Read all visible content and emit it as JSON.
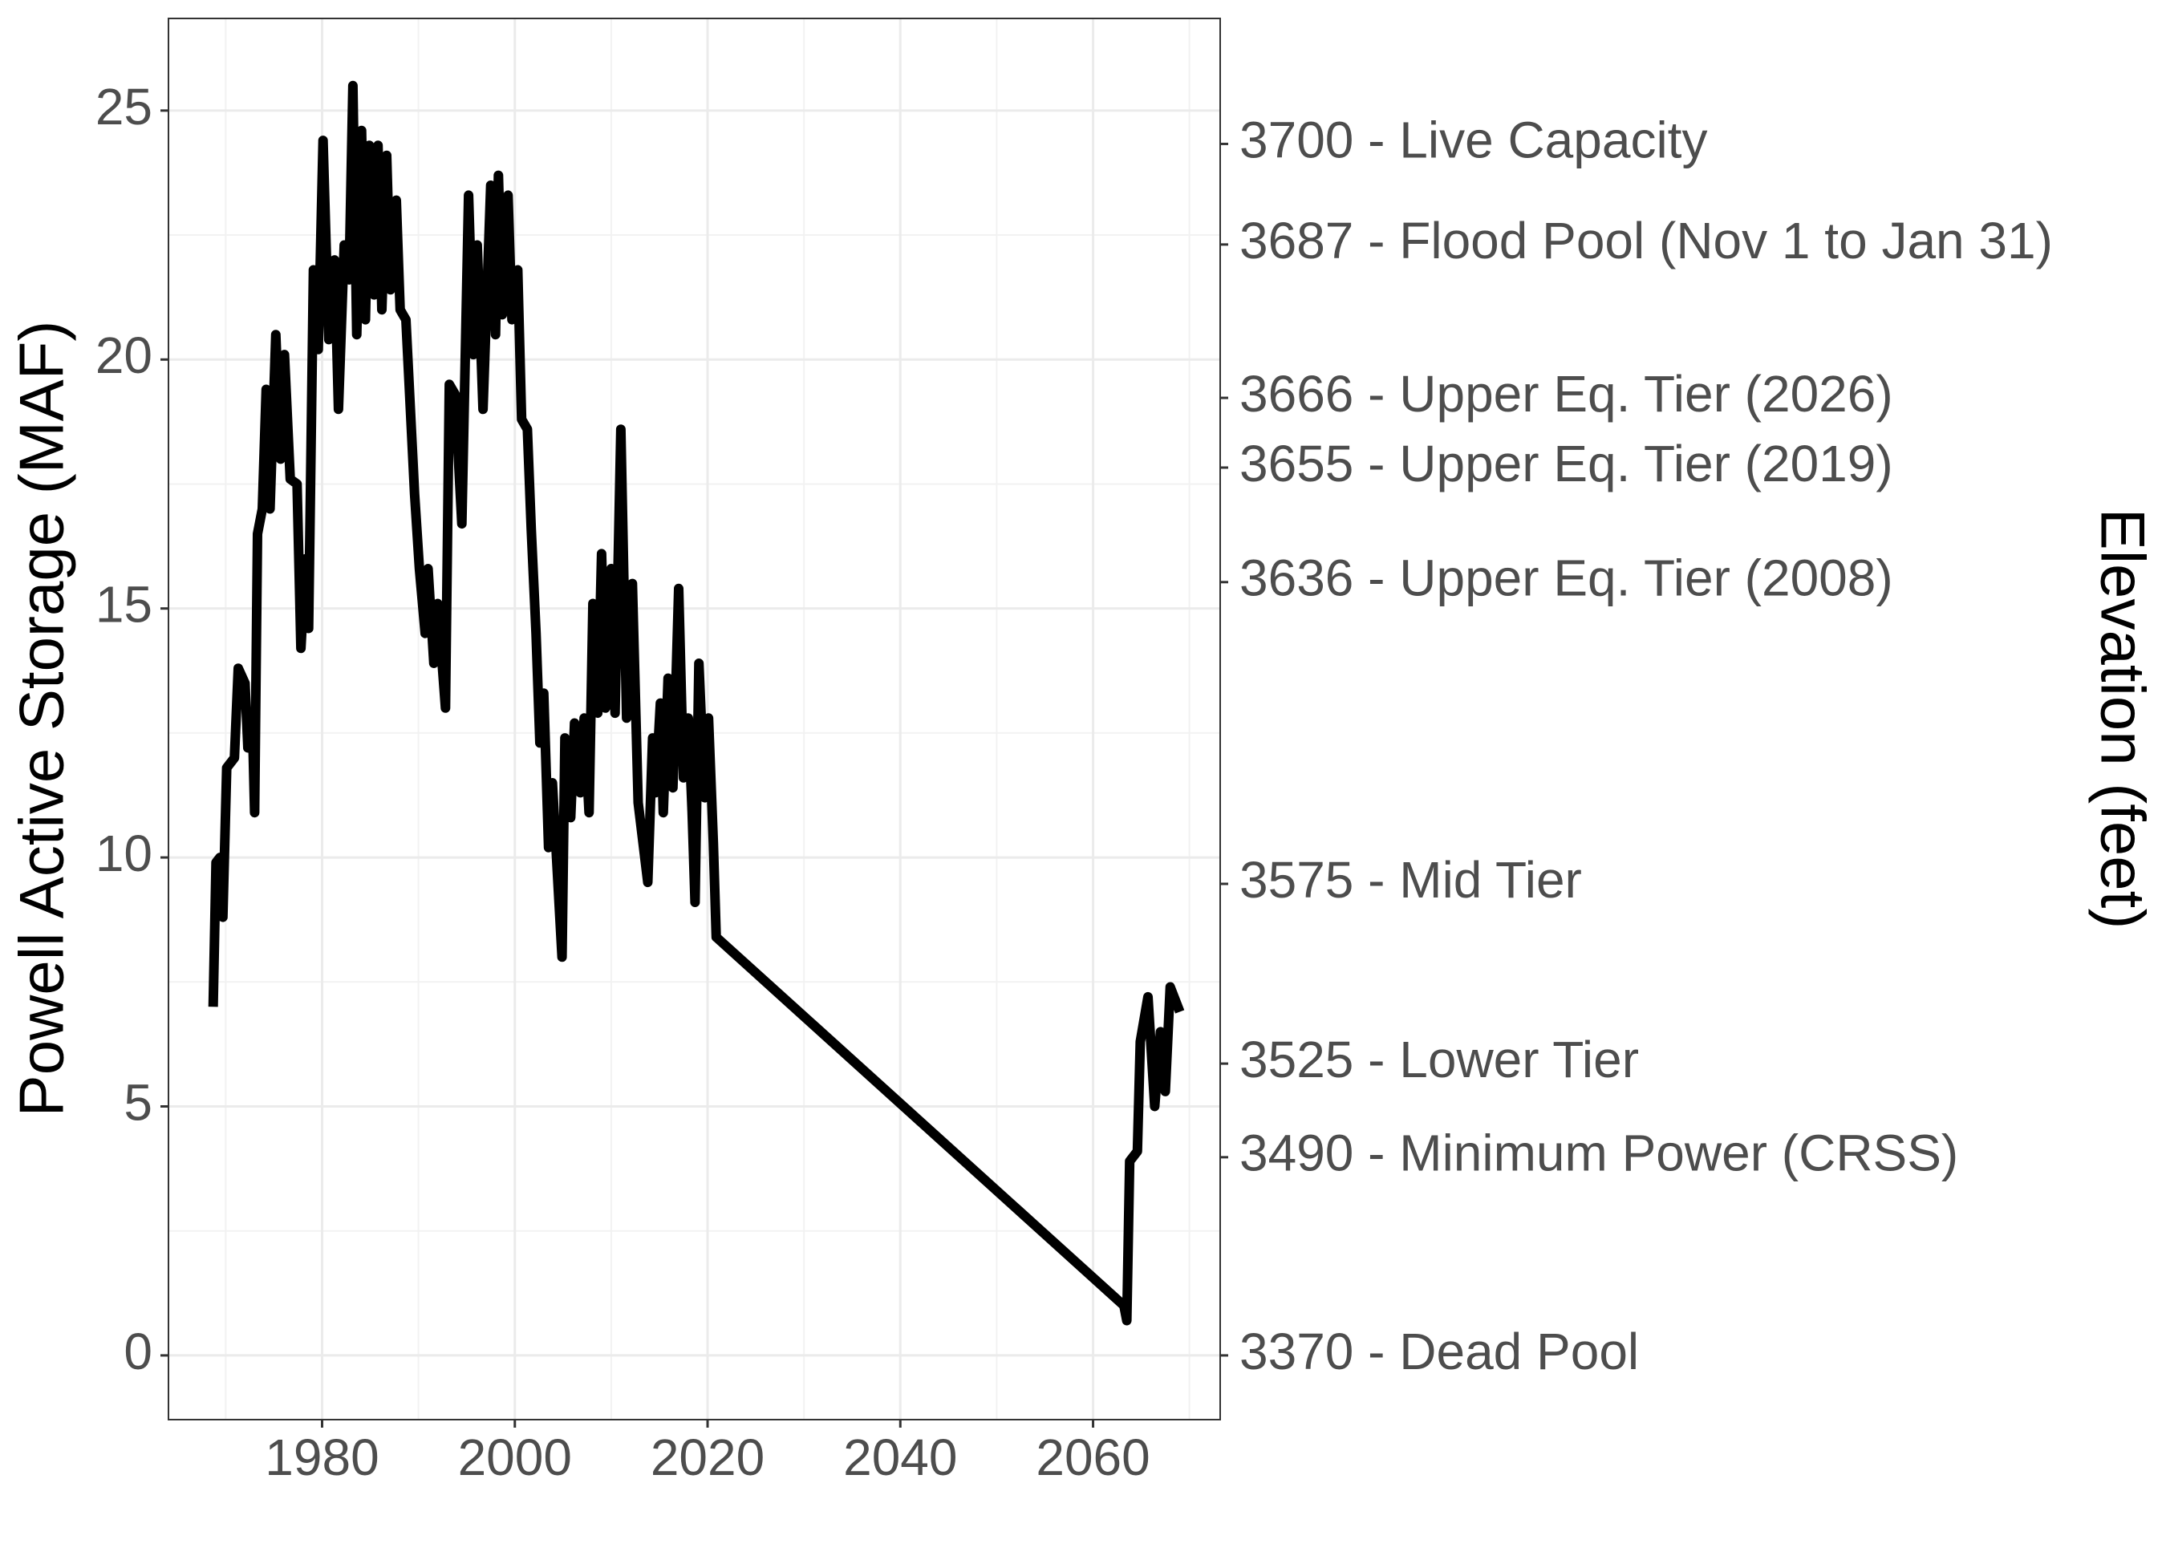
{
  "chart_data": {
    "type": "line",
    "y_label": "Powell Active Storage (MAF)",
    "y2_label": "Elevation (feet)",
    "color": "#000000",
    "grid": true,
    "x": [
      1968.7,
      1969.0,
      1969.4,
      1969.7,
      1970.1,
      1970.9,
      1971.3,
      1972.0,
      1972.3,
      1972.8,
      1973.0,
      1973.3,
      1973.8,
      1974.2,
      1974.6,
      1975.2,
      1975.7,
      1976.1,
      1976.7,
      1977.4,
      1977.8,
      1978.3,
      1978.6,
      1979.1,
      1979.6,
      1980.1,
      1980.7,
      1981.3,
      1981.7,
      1982.3,
      1982.8,
      1983.2,
      1983.6,
      1984.1,
      1984.5,
      1984.9,
      1985.4,
      1985.8,
      1986.2,
      1986.7,
      1987.1,
      1987.7,
      1988.1,
      1988.7,
      1989.6,
      1990.1,
      1990.7,
      1991.0,
      1991.6,
      1992.0,
      1992.8,
      1993.2,
      1993.8,
      1994.5,
      1995.2,
      1995.7,
      1996.1,
      1996.7,
      1997.5,
      1998.0,
      1998.3,
      1998.7,
      1999.3,
      1999.7,
      2000.3,
      2000.7,
      2001.3,
      2001.7,
      2002.2,
      2002.6,
      2003.0,
      2003.5,
      2003.9,
      2004.9,
      2005.2,
      2005.8,
      2006.2,
      2006.8,
      2007.2,
      2007.7,
      2008.1,
      2008.6,
      2009.0,
      2009.4,
      2010.0,
      2010.4,
      2011.0,
      2011.6,
      2012.2,
      2012.8,
      2013.8,
      2014.3,
      2014.6,
      2015.1,
      2015.4,
      2015.9,
      2016.4,
      2017.0,
      2017.5,
      2018.0,
      2018.4,
      2018.7,
      2019.1,
      2019.7,
      2020.1,
      2020.6,
      2020.9,
      2063.2,
      2063.5,
      2063.8,
      2064.6,
      2064.9,
      2065.7,
      2066.4,
      2067.0,
      2067.5,
      2068.0,
      2069.0
    ],
    "values": [
      7.0,
      9.9,
      10,
      8.8,
      11.8,
      12,
      13.8,
      13.5,
      12.2,
      12.5,
      10.9,
      16.5,
      17,
      19.4,
      17,
      20.5,
      18,
      20.1,
      17.6,
      17.5,
      14.2,
      16,
      14.6,
      21.8,
      20.2,
      24.4,
      20.4,
      22,
      19,
      22.3,
      21.6,
      25.5,
      20.5,
      24.6,
      20.8,
      24.3,
      21.3,
      24.3,
      21,
      24.1,
      21.4,
      23.2,
      21,
      20.8,
      17.3,
      15.8,
      14.5,
      15.8,
      13.9,
      15.1,
      13,
      19.5,
      19.3,
      16.7,
      23.3,
      20.1,
      22.3,
      19,
      23.5,
      20.5,
      23.7,
      20.9,
      23.3,
      20.8,
      21.8,
      18.8,
      18.6,
      16.6,
      14.5,
      12.3,
      13.3,
      10.2,
      11.5,
      8.0,
      12.4,
      10.8,
      12.7,
      11.3,
      12.8,
      10.9,
      15.1,
      12.9,
      16.1,
      13,
      15.8,
      12.9,
      18.6,
      12.8,
      15.5,
      11.1,
      9.5,
      12.4,
      11.3,
      13.1,
      10.9,
      13.6,
      11.4,
      15.4,
      11.6,
      12.8,
      10.9,
      9.1,
      13.9,
      11.2,
      12.8,
      10.3,
      8.4,
      1.0,
      0.7,
      3.9,
      4.1,
      6.3,
      7.2,
      5.0,
      6.5,
      5.3,
      7.4,
      6.9
    ],
    "xlim": [
      1964.06,
      2073.19
    ],
    "xticks": [
      1980,
      2000,
      2020,
      2040,
      2060
    ],
    "xminor": [
      1970,
      1990,
      2010,
      2030,
      2050,
      2070
    ],
    "ylim": [
      -1.29,
      26.85
    ],
    "yticks": [
      0,
      5,
      10,
      15,
      20,
      25
    ],
    "yminor": [
      2.5,
      7.5,
      12.5,
      17.5,
      22.5
    ],
    "y2lim": [
      -1.29,
      26.85
    ],
    "y2ticks": [
      {
        "value": 24.33,
        "label": "3700 - Live Capacity"
      },
      {
        "value": 22.31,
        "label": "3687 - Flood Pool (Nov 1 to Jan 31)"
      },
      {
        "value": 19.23,
        "label": "3666 - Upper Eq. Tier (2026)"
      },
      {
        "value": 17.83,
        "label": "3655 - Upper Eq. Tier (2019)"
      },
      {
        "value": 15.53,
        "label": "3636 - Upper Eq. Tier (2008)"
      },
      {
        "value": 9.47,
        "label": "3575 - Mid Tier"
      },
      {
        "value": 5.86,
        "label": "3525 - Lower Tier"
      },
      {
        "value": 3.98,
        "label": "3490 - Minimum Power (CRSS)"
      },
      {
        "value": 0,
        "label": "3370 - Dead Pool"
      }
    ]
  }
}
